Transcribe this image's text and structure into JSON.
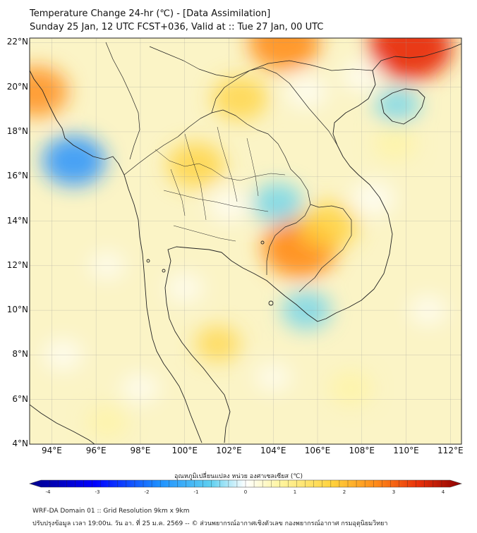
{
  "header": {
    "title_line1": "Temperature Change 24-hr (℃) - [Data Assimilation]",
    "title_line2": "Sunday 25 Jan, 12 UTC FCST+036, Valid at :: Tue 27 Jan, 00 UTC"
  },
  "axes": {
    "lat_labels": [
      "22°N",
      "20°N",
      "18°N",
      "16°N",
      "14°N",
      "12°N",
      "10°N",
      "8°N",
      "6°N",
      "4°N"
    ],
    "lat_values": [
      22,
      20,
      18,
      16,
      14,
      12,
      10,
      8,
      6,
      4
    ],
    "lon_labels": [
      "94°E",
      "96°E",
      "98°E",
      "100°E",
      "102°E",
      "104°E",
      "106°E",
      "108°E",
      "110°E",
      "112°E"
    ],
    "lon_values": [
      94,
      96,
      98,
      100,
      102,
      104,
      106,
      108,
      110,
      112
    ],
    "lon_range": [
      93,
      112.5
    ],
    "lat_range": [
      4,
      22.2
    ]
  },
  "colorbar": {
    "title": "อุณหภูมิเปลี่ยนแปลง หน่วย องศาเซลเซียส (℃)",
    "tick_labels": [
      "-4",
      "-3",
      "-2",
      "-1",
      "0",
      "1",
      "2",
      "3",
      "4"
    ],
    "range": [
      -4,
      4
    ],
    "colors": [
      "#00008b",
      "#0000ff",
      "#1e90ff",
      "#5fd0f0",
      "#ffffff",
      "#fff5a0",
      "#ffd23c",
      "#ff8c1a",
      "#e8300a",
      "#8b0000"
    ]
  },
  "footer": {
    "line1": "WRF-DA Domain 01 :: Grid Resolution 9km x 9km",
    "line2": "ปรับปรุงข้อมูล เวลา 19:00น. วัน อา. ที่ 25 ม.ค. 2569 -- © ส่วนพยากรณ์อากาศเชิงตัวเลข กองพยากรณ์อากาศ กรมอุตุนิยมวิทยา"
  },
  "field_anomalies": [
    {
      "name": "warm-central-thailand",
      "lon": 100.5,
      "lat": 16.5,
      "value": 1.5
    },
    {
      "name": "warm-cambodia",
      "lon": 105.2,
      "lat": 12.8,
      "value": 2.4
    },
    {
      "name": "warm-cambodia-east",
      "lon": 106.5,
      "lat": 13.8,
      "value": 1.6
    },
    {
      "name": "warm-laos-north",
      "lon": 102.5,
      "lat": 19.5,
      "value": 1.4
    },
    {
      "name": "warm-yunnan-south",
      "lon": 104.5,
      "lat": 22.0,
      "value": 2.2
    },
    {
      "name": "warm-guangxi",
      "lon": 110.2,
      "lat": 21.8,
      "value": 2.8
    },
    {
      "name": "warm-myanmar-west",
      "lon": 93.3,
      "lat": 19.8,
      "value": 1.8
    },
    {
      "name": "warm-south-china-sea",
      "lon": 109.5,
      "lat": 17.5,
      "value": 0.8
    },
    {
      "name": "warm-gulf-thailand",
      "lon": 101.5,
      "lat": 8.5,
      "value": 0.9
    },
    {
      "name": "warm-borneo-sea",
      "lon": 107.5,
      "lat": 6.5,
      "value": 0.8
    },
    {
      "name": "warm-andaman-south",
      "lon": 96.5,
      "lat": 5.0,
      "value": 0.7
    },
    {
      "name": "cool-andaman-north",
      "lon": 95.0,
      "lat": 16.7,
      "value": -1.8
    },
    {
      "name": "cool-isan",
      "lon": 104.2,
      "lat": 14.8,
      "value": -1.2
    },
    {
      "name": "cool-bangkok-east",
      "lon": 102.0,
      "lat": 14.7,
      "value": -0.7
    },
    {
      "name": "cool-hainan",
      "lon": 109.6,
      "lat": 19.2,
      "value": -0.9
    },
    {
      "name": "cool-gulf-tonkin",
      "lon": 108.0,
      "lat": 20.5,
      "value": -0.6
    },
    {
      "name": "cool-vietnam-coast",
      "lon": 108.5,
      "lat": 15.0,
      "value": -0.8
    },
    {
      "name": "cool-mekong-delta",
      "lon": 105.5,
      "lat": 10.0,
      "value": -1.1
    },
    {
      "name": "cool-gulf-center",
      "lon": 100.0,
      "lat": 11.0,
      "value": -0.5
    },
    {
      "name": "cool-andaman-south",
      "lon": 94.5,
      "lat": 8.0,
      "value": -0.6
    },
    {
      "name": "cool-sea-mid",
      "lon": 96.5,
      "lat": 12.0,
      "value": -0.4
    },
    {
      "name": "cool-malay-south",
      "lon": 98.0,
      "lat": 6.5,
      "value": -0.5
    },
    {
      "name": "cool-east-sea",
      "lon": 111.0,
      "lat": 10.0,
      "value": -0.5
    },
    {
      "name": "cool-sumatra-north",
      "lon": 104.0,
      "lat": 7.0,
      "value": -0.4
    },
    {
      "name": "cool-north-laos",
      "lon": 105.5,
      "lat": 19.8,
      "value": -0.7
    }
  ]
}
